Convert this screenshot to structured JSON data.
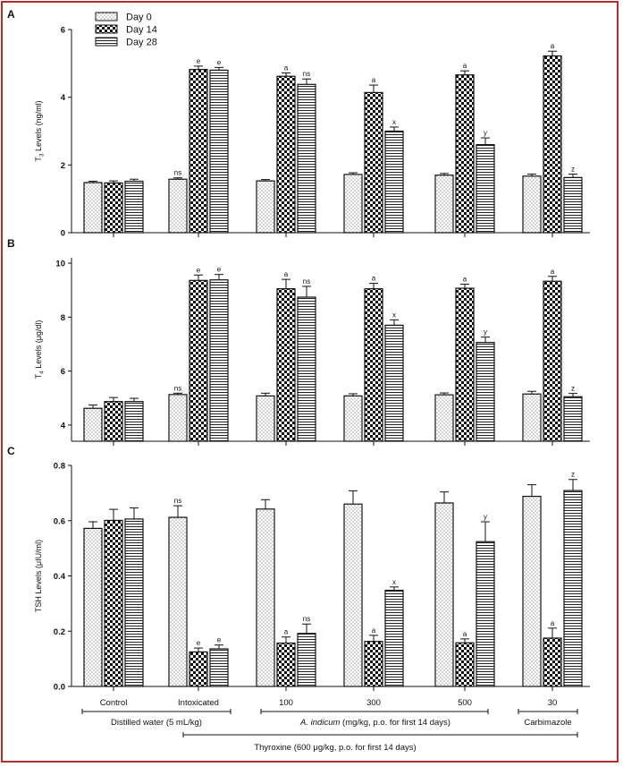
{
  "colors": {
    "frame": "#b03030",
    "bar_stroke": "#111111",
    "background": "#ffffff"
  },
  "legend": {
    "entries": [
      "Day 0",
      "Day 14",
      "Day 28"
    ],
    "patterns": [
      "dots",
      "checker",
      "horizontal-lines"
    ]
  },
  "groups": [
    "Control",
    "Intoxicated",
    "100",
    "300",
    "500",
    "30"
  ],
  "footer": {
    "vehicle_label": "Distilled water (5 mL/kg)",
    "extract_label": "A. indicum (mg/kg, p.o. for first 14 days)",
    "extract_label_italic": "A. indicum",
    "extract_label_rest": " (mg/kg, p.o. for first 14 days)",
    "standard_label": "Carbimazole",
    "thyroxine_label": "Thyroxine (600 μg/kg, p.o. for first 14 days)"
  },
  "chart_data": [
    {
      "panel": "A",
      "type": "bar",
      "ylabel": "T3 Levels (ng/ml)",
      "ylim": [
        0,
        6
      ],
      "yticks": [
        0,
        2,
        4,
        6
      ],
      "categories": [
        "Control",
        "Intoxicated",
        "100",
        "300",
        "500",
        "30"
      ],
      "series": [
        {
          "name": "Day 0",
          "values": [
            1.48,
            1.58,
            1.53,
            1.72,
            1.7,
            1.67
          ],
          "errors": [
            0.04,
            0.04,
            0.04,
            0.05,
            0.05,
            0.06
          ],
          "labels": [
            "",
            "ns",
            "",
            "",
            "",
            ""
          ]
        },
        {
          "name": "Day 14",
          "values": [
            1.47,
            4.82,
            4.62,
            4.14,
            4.66,
            5.22
          ],
          "errors": [
            0.06,
            0.1,
            0.1,
            0.22,
            0.12,
            0.14
          ],
          "labels": [
            "",
            "e",
            "a",
            "a",
            "a",
            "a"
          ]
        },
        {
          "name": "Day 28",
          "values": [
            1.52,
            4.8,
            4.38,
            3.0,
            2.6,
            1.63
          ],
          "errors": [
            0.06,
            0.08,
            0.16,
            0.12,
            0.2,
            0.1
          ],
          "labels": [
            "",
            "e",
            "ns",
            "x",
            "y",
            "z"
          ]
        }
      ]
    },
    {
      "panel": "B",
      "type": "bar",
      "ylabel": "T4 Levels (μg/dl)",
      "ylim": [
        3.4,
        10.2
      ],
      "yticks": [
        4,
        6,
        8,
        10
      ],
      "categories": [
        "Control",
        "Intoxicated",
        "100",
        "300",
        "500",
        "30"
      ],
      "series": [
        {
          "name": "Day 0",
          "values": [
            4.62,
            5.13,
            5.08,
            5.08,
            5.12,
            5.15
          ],
          "errors": [
            0.12,
            0.05,
            0.1,
            0.08,
            0.07,
            0.1
          ],
          "labels": [
            "",
            "ns",
            "",
            "",
            "",
            ""
          ]
        },
        {
          "name": "Day 14",
          "values": [
            4.87,
            9.36,
            9.05,
            9.05,
            9.07,
            9.33
          ],
          "errors": [
            0.15,
            0.2,
            0.35,
            0.2,
            0.15,
            0.18
          ],
          "labels": [
            "",
            "e",
            "a",
            "a",
            "a",
            "a"
          ]
        },
        {
          "name": "Day 28",
          "values": [
            4.87,
            9.38,
            8.74,
            7.7,
            7.06,
            5.05
          ],
          "errors": [
            0.12,
            0.2,
            0.4,
            0.2,
            0.2,
            0.12
          ],
          "labels": [
            "",
            "e",
            "ns",
            "x",
            "y",
            "z"
          ]
        }
      ]
    },
    {
      "panel": "C",
      "type": "bar",
      "ylabel": "TSH Levels (μIU/ml)",
      "ylim": [
        0,
        0.8
      ],
      "yticks": [
        0.0,
        0.2,
        0.4,
        0.6,
        0.8
      ],
      "categories": [
        "Control",
        "Intoxicated",
        "100",
        "300",
        "500",
        "30"
      ],
      "series": [
        {
          "name": "Day 0",
          "values": [
            0.572,
            0.612,
            0.642,
            0.66,
            0.664,
            0.688
          ],
          "errors": [
            0.024,
            0.042,
            0.034,
            0.048,
            0.04,
            0.042
          ],
          "labels": [
            "",
            "ns",
            "",
            "",
            "",
            ""
          ]
        },
        {
          "name": "Day 14",
          "values": [
            0.601,
            0.125,
            0.157,
            0.163,
            0.158,
            0.175
          ],
          "errors": [
            0.04,
            0.014,
            0.022,
            0.022,
            0.014,
            0.036
          ],
          "labels": [
            "",
            "e",
            "a",
            "a",
            "a",
            "a"
          ]
        },
        {
          "name": "Day 28",
          "values": [
            0.606,
            0.136,
            0.192,
            0.348,
            0.524,
            0.709
          ],
          "errors": [
            0.04,
            0.014,
            0.034,
            0.012,
            0.072,
            0.04
          ],
          "labels": [
            "",
            "e",
            "ns",
            "x",
            "y",
            "z"
          ]
        }
      ]
    }
  ]
}
